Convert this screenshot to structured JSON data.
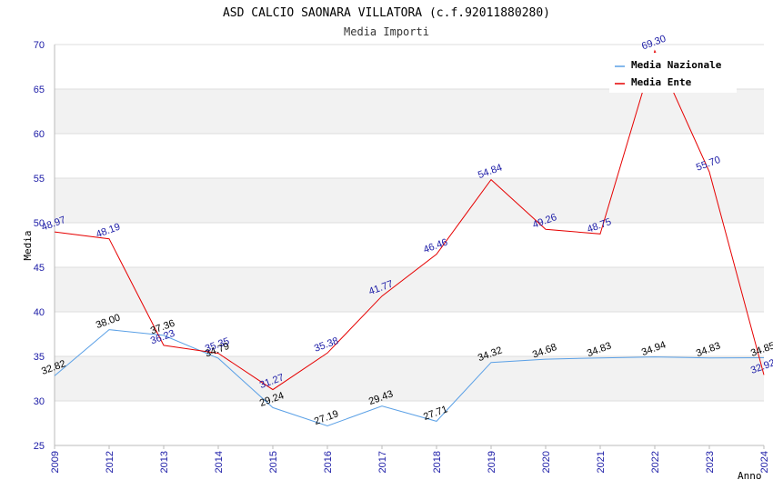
{
  "chart_data": {
    "type": "line",
    "title": "ASD CALCIO SAONARA VILLATORA (c.f.92011880280)",
    "subtitle": "Media Importi",
    "ylabel": "Media",
    "xlabel": "Anno",
    "ylim": [
      25,
      70
    ],
    "yticks": [
      25,
      30,
      35,
      40,
      45,
      50,
      55,
      60,
      65,
      70
    ],
    "categories": [
      "2009",
      "2012",
      "2013",
      "2014",
      "2015",
      "2016",
      "2017",
      "2018",
      "2019",
      "2020",
      "2021",
      "2022",
      "2023",
      "2024"
    ],
    "series": [
      {
        "name": "Media Nazionale",
        "color": "#5aa0e6",
        "values": [
          32.82,
          38.0,
          37.36,
          34.79,
          29.24,
          27.19,
          29.43,
          27.71,
          34.32,
          34.68,
          34.83,
          34.94,
          34.83,
          34.85
        ],
        "labels": [
          "32.82",
          "38.00",
          "37.36",
          "34.79",
          "29.24",
          "27.19",
          "29.43",
          "27.71",
          "34.32",
          "34.68",
          "34.83",
          "34.94",
          "34.83",
          "34.85"
        ]
      },
      {
        "name": "Media Ente",
        "color": "#e60000",
        "values": [
          48.97,
          48.19,
          36.23,
          35.35,
          31.27,
          35.38,
          41.77,
          46.46,
          54.84,
          49.26,
          48.75,
          69.3,
          55.7,
          32.92
        ],
        "labels": [
          "48.97",
          "48.19",
          "36.23",
          "35.35",
          "31.27",
          "35.38",
          "41.77",
          "46.46",
          "54.84",
          "49.26",
          "48.75",
          "69.30",
          "55.70",
          "32.92"
        ]
      }
    ],
    "grid": true,
    "legend_position": "top-right"
  }
}
